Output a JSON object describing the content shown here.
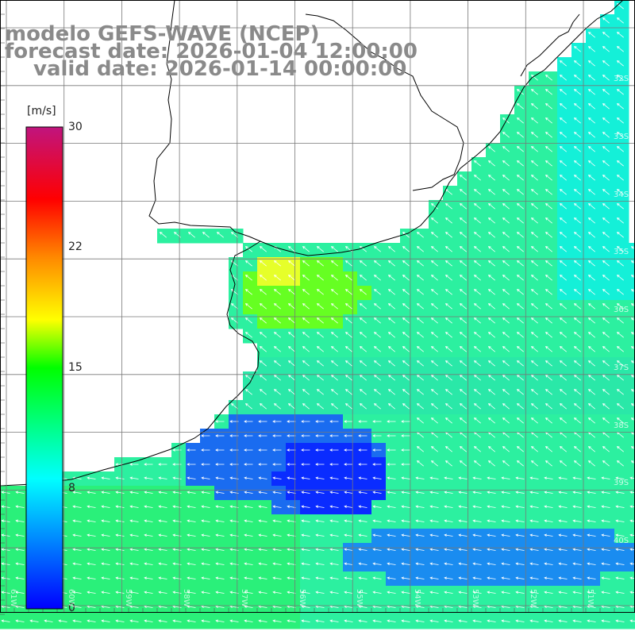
{
  "title": {
    "line1": "modelo GEFS-WAVE (NCEP)",
    "line2": "forecast date: 2026-01-04 12:00:00",
    "line3": "valid date: 2026-01-14 00:00:00"
  },
  "colorbar": {
    "unit": "[m/s]",
    "ticks": [
      "30",
      "22",
      "15",
      "8",
      "0"
    ],
    "stops": [
      "#c0147e",
      "#ff0000",
      "#ff8800",
      "#ffff00",
      "#00ff00",
      "#00ffff",
      "#0000ff"
    ]
  },
  "grid": {
    "lat_labels": [
      "32S",
      "33S",
      "34S",
      "35S",
      "36S",
      "37S",
      "38S",
      "39S",
      "40S"
    ],
    "lon_labels": [
      "61W",
      "60W",
      "59W",
      "58W",
      "57W",
      "56W",
      "55W",
      "54W",
      "53W",
      "52W",
      "51W"
    ]
  },
  "colors": {
    "land": "#ffffff",
    "coastline": "#000000",
    "grid": "#777777",
    "arrow": "#ffffff",
    "title": "#8a8a8a"
  }
}
